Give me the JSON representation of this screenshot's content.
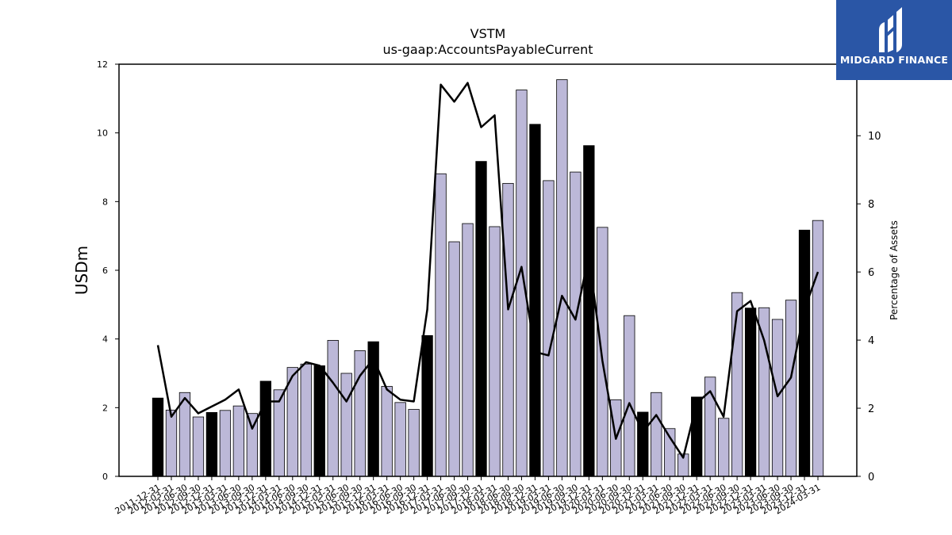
{
  "chart_data": {
    "type": "bar+line",
    "title": "VSTM",
    "subtitle": "us-gaap:AccountsPayableCurrent",
    "ylabel_left": "USDm",
    "ylabel_right": "Percentage of Assets",
    "ylim_left": [
      0,
      12
    ],
    "ylim_right": [
      0,
      12.1
    ],
    "yticks_left": [
      "0",
      "2",
      "4",
      "6",
      "8",
      "10",
      "12"
    ],
    "yticks_right": [
      "0",
      "2",
      "4",
      "6",
      "8",
      "10"
    ],
    "colors": {
      "annual_bar": "#000000",
      "quarter_bar": "#bcb8d8",
      "line": "#000000"
    },
    "categories": [
      "2011-12-31",
      "2012-03-31",
      "2012-06-30",
      "2012-09-30",
      "2012-12-31",
      "2013-03-31",
      "2013-06-30",
      "2013-09-30",
      "2013-12-31",
      "2014-03-31",
      "2014-06-30",
      "2014-09-30",
      "2014-12-31",
      "2015-03-31",
      "2015-06-30",
      "2015-09-30",
      "2015-12-31",
      "2016-03-31",
      "2016-06-30",
      "2016-09-30",
      "2016-12-31",
      "2017-03-31",
      "2017-06-30",
      "2017-09-30",
      "2017-12-31",
      "2018-03-31",
      "2018-06-30",
      "2018-09-30",
      "2018-12-31",
      "2019-03-31",
      "2019-06-30",
      "2019-09-30",
      "2019-12-31",
      "2020-03-31",
      "2020-06-30",
      "2020-09-30",
      "2020-12-31",
      "2021-03-31",
      "2021-06-30",
      "2021-09-30",
      "2021-12-31",
      "2022-03-31",
      "2022-06-30",
      "2022-09-30",
      "2022-12-31",
      "2023-03-31",
      "2023-06-30",
      "2023-09-30",
      "2023-12-31",
      "2024-03-31"
    ],
    "series": [
      {
        "type": "bar",
        "axis": "left",
        "values": [
          2.28,
          1.93,
          2.44,
          1.73,
          1.86,
          1.92,
          2.05,
          1.83,
          2.77,
          2.52,
          3.17,
          3.27,
          3.22,
          3.96,
          3.0,
          3.66,
          3.92,
          2.62,
          2.15,
          1.95,
          4.1,
          8.81,
          6.83,
          7.36,
          9.17,
          7.27,
          8.53,
          11.25,
          10.25,
          8.61,
          11.55,
          8.86,
          9.63,
          7.25,
          2.23,
          4.68,
          1.87,
          2.44,
          1.39,
          0.65,
          2.31,
          2.89,
          1.69,
          5.35,
          4.9,
          4.91,
          4.57,
          5.13,
          7.17,
          7.45
        ],
        "annual": [
          true,
          false,
          false,
          false,
          true,
          false,
          false,
          false,
          true,
          false,
          false,
          false,
          true,
          false,
          false,
          false,
          true,
          false,
          false,
          false,
          true,
          false,
          false,
          false,
          true,
          false,
          false,
          false,
          true,
          false,
          false,
          false,
          true,
          false,
          false,
          false,
          true,
          false,
          false,
          false,
          true,
          false,
          false,
          false,
          true,
          false,
          false,
          false,
          true,
          false
        ]
      },
      {
        "type": "line",
        "axis": "right",
        "values": [
          3.85,
          1.75,
          2.3,
          1.85,
          2.05,
          2.25,
          2.55,
          1.4,
          2.2,
          2.2,
          2.95,
          3.35,
          3.25,
          2.75,
          2.2,
          2.95,
          3.45,
          2.55,
          2.25,
          2.2,
          4.9,
          11.5,
          11.0,
          11.55,
          10.25,
          10.6,
          4.9,
          6.15,
          3.65,
          3.55,
          5.3,
          4.6,
          6.5,
          3.4,
          1.1,
          2.15,
          1.3,
          1.8,
          1.15,
          0.55,
          2.15,
          2.5,
          1.75,
          4.85,
          5.15,
          4.0,
          2.35,
          2.9,
          4.9,
          6.0
        ]
      }
    ]
  },
  "logo": {
    "text": "MIDGARD FINANCE"
  }
}
